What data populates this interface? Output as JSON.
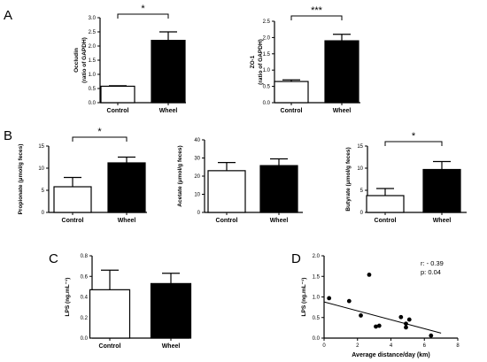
{
  "panel_letters": [
    "A",
    "B",
    "C",
    "D"
  ],
  "chart_data": [
    {
      "id": "occludin",
      "panel": "A",
      "type": "bar",
      "categories": [
        "Control",
        "Wheel"
      ],
      "values": [
        0.58,
        2.2
      ],
      "errors": [
        0.02,
        0.3
      ],
      "fills": [
        "#ffffff",
        "#000000"
      ],
      "ylabel_lines": [
        "Occludin",
        "(ratio of GAPDH)"
      ],
      "ylim": [
        0,
        3.0
      ],
      "yticks": [
        0,
        0.5,
        1.0,
        1.5,
        2.0,
        2.5,
        3.0
      ],
      "ytick_labels": [
        "0.0",
        "0.5",
        "1.0",
        "1.5",
        "2.0",
        "2.5",
        "3.0"
      ],
      "significance": "*"
    },
    {
      "id": "zo1",
      "panel": "A",
      "type": "bar",
      "categories": [
        "Control",
        "Wheel"
      ],
      "values": [
        0.65,
        1.9
      ],
      "errors": [
        0.05,
        0.2
      ],
      "fills": [
        "#ffffff",
        "#000000"
      ],
      "ylabel_lines": [
        "ZO-1",
        "(ratio of GAPDH)"
      ],
      "ylim": [
        0,
        2.5
      ],
      "yticks": [
        0,
        0.5,
        1.0,
        1.5,
        2.0,
        2.5
      ],
      "ytick_labels": [
        "0.0",
        "0.5",
        "1.0",
        "1.5",
        "2.0",
        "2.5"
      ],
      "significance": "***"
    },
    {
      "id": "propionate",
      "panel": "B",
      "type": "bar",
      "categories": [
        "Control",
        "Wheel"
      ],
      "values": [
        5.8,
        11.2
      ],
      "errors": [
        2.1,
        1.3
      ],
      "fills": [
        "#ffffff",
        "#000000"
      ],
      "ylabel_lines": [
        "Propionate (μmol/g feces)"
      ],
      "ylim": [
        0,
        15
      ],
      "yticks": [
        0,
        5,
        10,
        15
      ],
      "ytick_labels": [
        "0",
        "5",
        "10",
        "15"
      ],
      "significance": "*"
    },
    {
      "id": "acetate",
      "panel": "B",
      "type": "bar",
      "categories": [
        "Control",
        "Wheel"
      ],
      "values": [
        23,
        25.8
      ],
      "errors": [
        4.5,
        3.7
      ],
      "fills": [
        "#ffffff",
        "#000000"
      ],
      "ylabel_lines": [
        "Acetate (μmol/g feces)"
      ],
      "ylim": [
        0,
        40
      ],
      "yticks": [
        0,
        10,
        20,
        30,
        40
      ],
      "ytick_labels": [
        "0",
        "10",
        "20",
        "30",
        "40"
      ],
      "significance": ""
    },
    {
      "id": "butyrate",
      "panel": "B",
      "type": "bar",
      "categories": [
        "Control",
        "Wheel"
      ],
      "values": [
        3.8,
        9.7
      ],
      "errors": [
        1.6,
        1.8
      ],
      "fills": [
        "#ffffff",
        "#000000"
      ],
      "ylabel_lines": [
        "Butyrate (μmol/g feces)"
      ],
      "ylim": [
        0,
        15
      ],
      "yticks": [
        0,
        5,
        10,
        15
      ],
      "ytick_labels": [
        "0",
        "5",
        "10",
        "15"
      ],
      "significance": "*"
    },
    {
      "id": "lps",
      "panel": "C",
      "type": "bar",
      "categories": [
        "Control",
        "Wheel"
      ],
      "values": [
        0.47,
        0.53
      ],
      "errors": [
        0.19,
        0.1
      ],
      "fills": [
        "#ffffff",
        "#000000"
      ],
      "ylabel_lines": [
        "LPS (ng.mL⁻¹)"
      ],
      "ylim": [
        0,
        0.8
      ],
      "yticks": [
        0,
        0.2,
        0.4,
        0.6,
        0.8
      ],
      "ytick_labels": [
        "0.0",
        "0.2",
        "0.4",
        "0.6",
        "0.8"
      ],
      "significance": ""
    },
    {
      "id": "scatter",
      "panel": "D",
      "type": "scatter",
      "x": [
        0.3,
        1.5,
        2.2,
        2.7,
        3.1,
        3.3,
        4.6,
        4.9,
        4.9,
        5.1,
        6.4
      ],
      "y": [
        0.97,
        0.9,
        0.55,
        1.54,
        0.28,
        0.3,
        0.51,
        0.26,
        0.35,
        0.45,
        0.06
      ],
      "trend": {
        "x": [
          0,
          7
        ],
        "y": [
          0.88,
          0.12
        ]
      },
      "xlabel": "Average distance/day (km)",
      "ylabel": "LPS (ng.mL⁻¹)",
      "xlim": [
        0,
        8
      ],
      "ylim": [
        0,
        2.0
      ],
      "xticks": [
        0,
        2,
        4,
        6,
        8
      ],
      "xtick_labels": [
        "0",
        "2",
        "4",
        "6",
        "8"
      ],
      "yticks": [
        0,
        0.5,
        1.0,
        1.5,
        2.0
      ],
      "ytick_labels": [
        "0.0",
        "0.5",
        "1.0",
        "1.5",
        "2.0"
      ],
      "annotations": [
        "r: - 0.39",
        "p: 0.04"
      ]
    }
  ]
}
